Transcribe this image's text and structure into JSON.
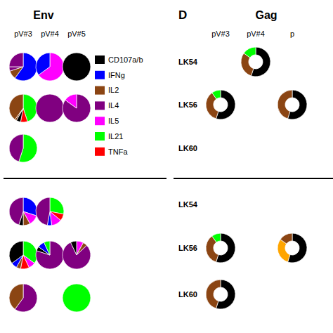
{
  "chart_data": [
    {
      "type": "pie",
      "title": "Env",
      "categories": [
        "pV#3",
        "pV#4",
        "pV#5"
      ],
      "series": [
        {
          "name": "CD107a/b",
          "color": "#000000"
        },
        {
          "name": "IFNg",
          "color": "#0000FF"
        },
        {
          "name": "IL2",
          "color": "#8B4513"
        },
        {
          "name": "IL4",
          "color": "#800080"
        },
        {
          "name": "IL5",
          "color": "#FF00FF"
        },
        {
          "name": "IL21",
          "color": "#00FF00"
        },
        {
          "name": "TNFa",
          "color": "#FF0000"
        }
      ],
      "top": [
        [
          {
            "values": [
              0.6,
              0.1,
              0.05,
              0.25
            ],
            "colors": [
              "#0000FF",
              "#8B4513",
              "#800080",
              "#800080"
            ]
          },
          {
            "values": [
              0.65,
              0.35
            ],
            "colors": [
              "#FF00FF",
              "#0000FF"
            ]
          },
          {
            "values": [
              1.0
            ],
            "colors": [
              "#000000"
            ]
          }
        ],
        [
          {
            "values": [
              0.45,
              0.08,
              0.05,
              0.02,
              0.4
            ],
            "colors": [
              "#00FF00",
              "#FF0000",
              "#000000",
              "#8B4513",
              "#8B4513"
            ]
          },
          {
            "values": [
              1.0
            ],
            "colors": [
              "#800080"
            ]
          },
          {
            "values": [
              0.85,
              0.15
            ],
            "colors": [
              "#800080",
              "#FF00FF"
            ]
          }
        ],
        [
          {
            "values": [
              0.55,
              0.45
            ],
            "colors": [
              "#00FF00",
              "#800080"
            ]
          },
          null,
          null
        ]
      ],
      "bottom": [
        [
          {
            "values": [
              0.3,
              0.12,
              0.08,
              0.05,
              0.45
            ],
            "colors": [
              "#0000FF",
              "#FF00FF",
              "#8B4513",
              "#000000",
              "#800080"
            ]
          },
          {
            "values": [
              0.28,
              0.08,
              0.12,
              0.05,
              0.47
            ],
            "colors": [
              "#00FF00",
              "#FF0000",
              "#FF00FF",
              "#0000FF",
              "#800080"
            ]
          },
          null
        ],
        [
          {
            "values": [
              0.35,
              0.08,
              0.1,
              0.05,
              0.07,
              0.35
            ],
            "colors": [
              "#00FF00",
              "#FF00FF",
              "#FF0000",
              "#8B4513",
              "#0000FF",
              "#000000"
            ]
          },
          {
            "values": [
              0.8,
              0.05,
              0.08,
              0.07
            ],
            "colors": [
              "#800080",
              "#000000",
              "#0000FF",
              "#00FF00"
            ]
          },
          {
            "values": [
              0.08,
              0.05,
              0.8,
              0.07
            ],
            "colors": [
              "#FF00FF",
              "#8B4513",
              "#800080",
              "#000000"
            ]
          }
        ],
        [
          {
            "values": [
              0.6,
              0.4
            ],
            "colors": [
              "#800080",
              "#8B4513"
            ]
          },
          null,
          {
            "values": [
              1.0
            ],
            "colors": [
              "#00FF00"
            ]
          }
        ]
      ]
    },
    {
      "type": "donut",
      "title": "Gag",
      "annotations": [
        "D"
      ],
      "categories": [
        "pV#3",
        "pV#4",
        "p"
      ],
      "top_rows": [
        "LK54",
        "LK56",
        "LK60"
      ],
      "bottom_rows": [
        "LK54",
        "LK56",
        "LK60"
      ],
      "top": [
        [
          null,
          {
            "values": [
              0.55,
              0.3,
              0.15
            ],
            "colors": [
              "#000000",
              "#8B4513",
              "#00FF00"
            ]
          },
          null
        ],
        [
          {
            "values": [
              0.55,
              0.35,
              0.1
            ],
            "colors": [
              "#000000",
              "#8B4513",
              "#00FF00"
            ]
          },
          null,
          {
            "values": [
              0.55,
              0.45
            ],
            "colors": [
              "#000000",
              "#8B4513"
            ]
          }
        ],
        [
          null,
          null,
          null
        ]
      ],
      "bottom": [
        [
          null,
          null,
          null
        ],
        [
          {
            "values": [
              0.55,
              0.35,
              0.1
            ],
            "colors": [
              "#000000",
              "#8B4513",
              "#00FF00"
            ]
          },
          null,
          {
            "values": [
              0.55,
              0.3,
              0.15
            ],
            "colors": [
              "#000000",
              "#FFA500",
              "#8B4513"
            ]
          }
        ],
        [
          {
            "values": [
              0.55,
              0.45
            ],
            "colors": [
              "#000000",
              "#8B4513"
            ]
          },
          null,
          null
        ]
      ]
    }
  ]
}
